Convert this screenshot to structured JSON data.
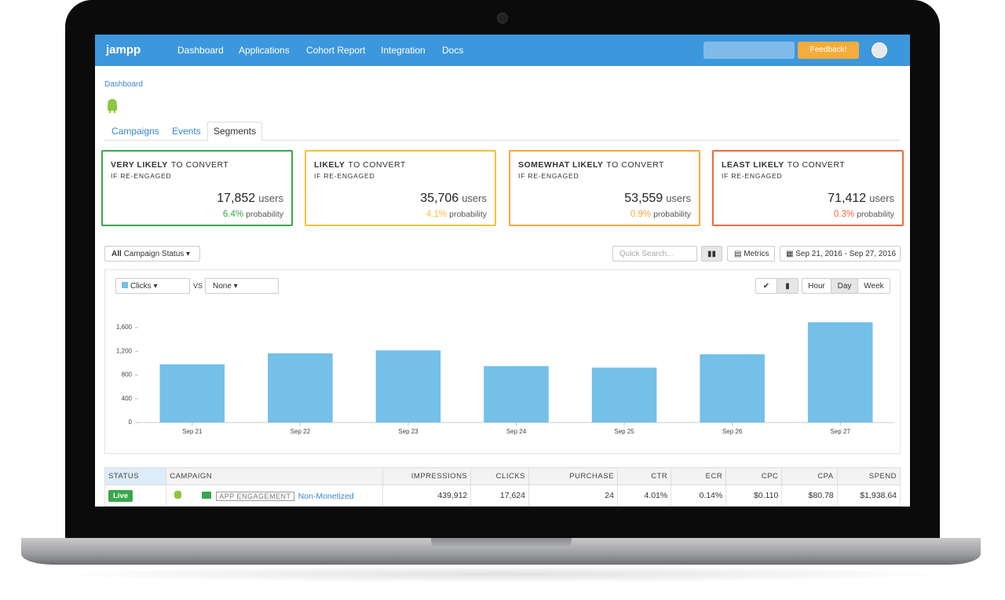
{
  "nav": {
    "logo": "jampp",
    "links": [
      "Dashboard",
      "Applications",
      "Cohort Report",
      "Integration",
      "Docs"
    ],
    "feedback": "Feedback!"
  },
  "breadcrumb": "Dashboard",
  "tabs": [
    "Campaigns",
    "Events",
    "Segments"
  ],
  "cards": [
    {
      "strong": "VERY LIKELY",
      "rest": "TO CONVERT",
      "sub": "IF RE-ENGAGED",
      "users": "17,852",
      "users_label": "users",
      "prob": "6.4%",
      "prob_label": "probability",
      "color": "#3aa64b"
    },
    {
      "strong": "LIKELY",
      "rest": "TO CONVERT",
      "sub": "IF RE-ENGAGED",
      "users": "35,706",
      "users_label": "users",
      "prob": "4.1%",
      "prob_label": "probability",
      "color": "#f5c242"
    },
    {
      "strong": "SOMEWHAT LIKELY",
      "rest": "TO CONVERT",
      "sub": "IF RE-ENGAGED",
      "users": "53,559",
      "users_label": "users",
      "prob": "0.9%",
      "prob_label": "probability",
      "color": "#f5a742"
    },
    {
      "strong": "LEAST LIKELY",
      "rest": "TO CONVERT",
      "sub": "IF RE-ENGAGED",
      "users": "71,412",
      "users_label": "users",
      "prob": "0.3%",
      "prob_label": "probability",
      "color": "#ef6a43"
    }
  ],
  "toolbar": {
    "status_all": "All",
    "status": "Campaign Status",
    "search": "Quick Search...",
    "metrics": "Metrics",
    "daterange": "Sep 21, 2016 - Sep 27, 2016"
  },
  "chart_controls": {
    "metric": "Clicks",
    "vs": "VS",
    "compare": "None",
    "granularity": [
      "Hour",
      "Day",
      "Week"
    ]
  },
  "chart_data": {
    "type": "bar",
    "categories": [
      "Sep 21",
      "Sep 22",
      "Sep 23",
      "Sep 24",
      "Sep 25",
      "Sep 26",
      "Sep 27"
    ],
    "values": [
      980,
      1165,
      1215,
      950,
      925,
      1150,
      1690
    ],
    "color": "#74c0e8",
    "ylim": [
      0,
      1800
    ],
    "yticks": [
      0,
      400,
      800,
      {
        "value": 1200,
        "label": "1,200"
      },
      {
        "value": 1600,
        "label": "1,600"
      }
    ]
  },
  "table": {
    "headers": [
      "STATUS",
      "CAMPAIGN",
      "IMPRESSIONS",
      "CLICKS",
      "PURCHASE",
      "CTR",
      "ECR",
      "CPC",
      "CPA",
      "SPEND"
    ],
    "rows": [
      {
        "status": "Live",
        "tag": "APP ENGAGEMENT",
        "name": "Non-Monetized",
        "cells": [
          "439,912",
          "17,624",
          "24",
          "4.01%",
          "0.14%",
          "$0.110",
          "$80.78",
          "$1,938.64"
        ]
      }
    ]
  }
}
